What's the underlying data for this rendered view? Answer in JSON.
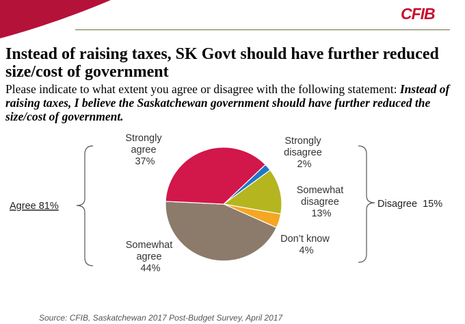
{
  "brand": {
    "logo_text": "CFIB",
    "accent": "#c8102e",
    "rule_color": "#6b6a3a"
  },
  "header": {
    "title": "Instead of raising taxes, SK Govt should have further reduced size/cost of government",
    "question_intro": "Please indicate to what extent you agree or disagree with the following statement: ",
    "question_statement": "Instead of raising taxes, I believe the Saskatchewan government should have further reduced the size/cost of government."
  },
  "chart_data": {
    "type": "pie",
    "slices": [
      {
        "label_lines": [
          "Strongly",
          "disagree"
        ],
        "value": 2,
        "value_text": "2%",
        "color": "#1f78c8"
      },
      {
        "label_lines": [
          "Somewhat",
          "disagree"
        ],
        "value": 13,
        "value_text": "13%",
        "color": "#b5b520"
      },
      {
        "label_lines": [
          "Don’t know"
        ],
        "value": 4,
        "value_text": "4%",
        "color": "#f5a623"
      },
      {
        "label_lines": [
          "Somewhat",
          "agree"
        ],
        "value": 44,
        "value_text": "44%",
        "color": "#8c7b6b"
      },
      {
        "label_lines": [
          "Strongly",
          "agree"
        ],
        "value": 37,
        "value_text": "37%",
        "color": "#d2174a"
      }
    ],
    "groups": [
      {
        "label": "Agree 81%",
        "value": 81
      },
      {
        "label": "Disagree  15%",
        "value": 15
      }
    ]
  },
  "footer": {
    "source": "Source: CFIB, Saskatchewan 2017 Post-Budget Survey, April 2017"
  }
}
